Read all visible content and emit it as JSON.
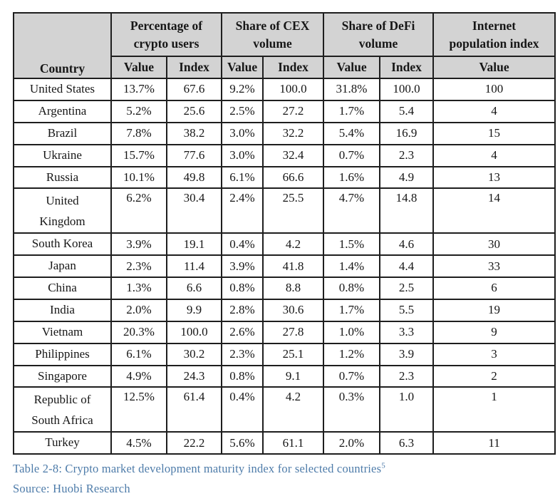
{
  "table": {
    "corner_header": "Country",
    "groups": [
      {
        "name": "percentage-of-crypto-users",
        "line1": "Percentage of",
        "line2": "crypto users"
      },
      {
        "name": "share-of-cex-volume",
        "line1": "Share of CEX",
        "line2": "volume"
      },
      {
        "name": "share-of-defi-volume",
        "line1": "Share of DeFi",
        "line2": "volume"
      },
      {
        "name": "internet-population-index",
        "line1": "Internet",
        "line2": "population index"
      }
    ],
    "subheaders": [
      "Value",
      "Index",
      "Value",
      "Index",
      "Value",
      "Index",
      "Value"
    ],
    "rows": [
      {
        "country": "United States",
        "values": [
          "13.7%",
          "67.6",
          "9.2%",
          "100.0",
          "31.8%",
          "100.0",
          "100"
        ]
      },
      {
        "country": "Argentina",
        "values": [
          "5.2%",
          "25.6",
          "2.5%",
          "27.2",
          "1.7%",
          "5.4",
          "4"
        ]
      },
      {
        "country": "Brazil",
        "values": [
          "7.8%",
          "38.2",
          "3.0%",
          "32.2",
          "5.4%",
          "16.9",
          "15"
        ]
      },
      {
        "country": "Ukraine",
        "values": [
          "15.7%",
          "77.6",
          "3.0%",
          "32.4",
          "0.7%",
          "2.3",
          "4"
        ]
      },
      {
        "country": "Russia",
        "values": [
          "10.1%",
          "49.8",
          "6.1%",
          "66.6",
          "1.6%",
          "4.9",
          "13"
        ]
      },
      {
        "country": "United\nKingdom",
        "values": [
          "6.2%",
          "30.4",
          "2.4%",
          "25.5",
          "4.7%",
          "14.8",
          "14"
        ]
      },
      {
        "country": "South Korea",
        "values": [
          "3.9%",
          "19.1",
          "0.4%",
          "4.2",
          "1.5%",
          "4.6",
          "30"
        ]
      },
      {
        "country": "Japan",
        "values": [
          "2.3%",
          "11.4",
          "3.9%",
          "41.8",
          "1.4%",
          "4.4",
          "33"
        ]
      },
      {
        "country": "China",
        "values": [
          "1.3%",
          "6.6",
          "0.8%",
          "8.8",
          "0.8%",
          "2.5",
          "6"
        ]
      },
      {
        "country": "India",
        "values": [
          "2.0%",
          "9.9",
          "2.8%",
          "30.6",
          "1.7%",
          "5.5",
          "19"
        ]
      },
      {
        "country": "Vietnam",
        "values": [
          "20.3%",
          "100.0",
          "2.6%",
          "27.8",
          "1.0%",
          "3.3",
          "9"
        ]
      },
      {
        "country": "Philippines",
        "values": [
          "6.1%",
          "30.2",
          "2.3%",
          "25.1",
          "1.2%",
          "3.9",
          "3"
        ]
      },
      {
        "country": "Singapore",
        "values": [
          "4.9%",
          "24.3",
          "0.8%",
          "9.1",
          "0.7%",
          "2.3",
          "2"
        ]
      },
      {
        "country": "Republic of\nSouth Africa",
        "values": [
          "12.5%",
          "61.4",
          "0.4%",
          "4.2",
          "0.3%",
          "1.0",
          "1"
        ]
      },
      {
        "country": "Turkey",
        "values": [
          "4.5%",
          "22.2",
          "5.6%",
          "61.1",
          "2.0%",
          "6.3",
          "11"
        ]
      }
    ]
  },
  "caption": {
    "text": "Table 2-8:  Crypto market  development maturity  index for selected countries",
    "footnote_ref": "5",
    "source": "Source: Huobi Research"
  },
  "colors": {
    "header_bg": "#d3d3d3",
    "border": "#1e1e1e",
    "caption_blue": "#4d7ba9",
    "body_bg": "#ffffff"
  }
}
